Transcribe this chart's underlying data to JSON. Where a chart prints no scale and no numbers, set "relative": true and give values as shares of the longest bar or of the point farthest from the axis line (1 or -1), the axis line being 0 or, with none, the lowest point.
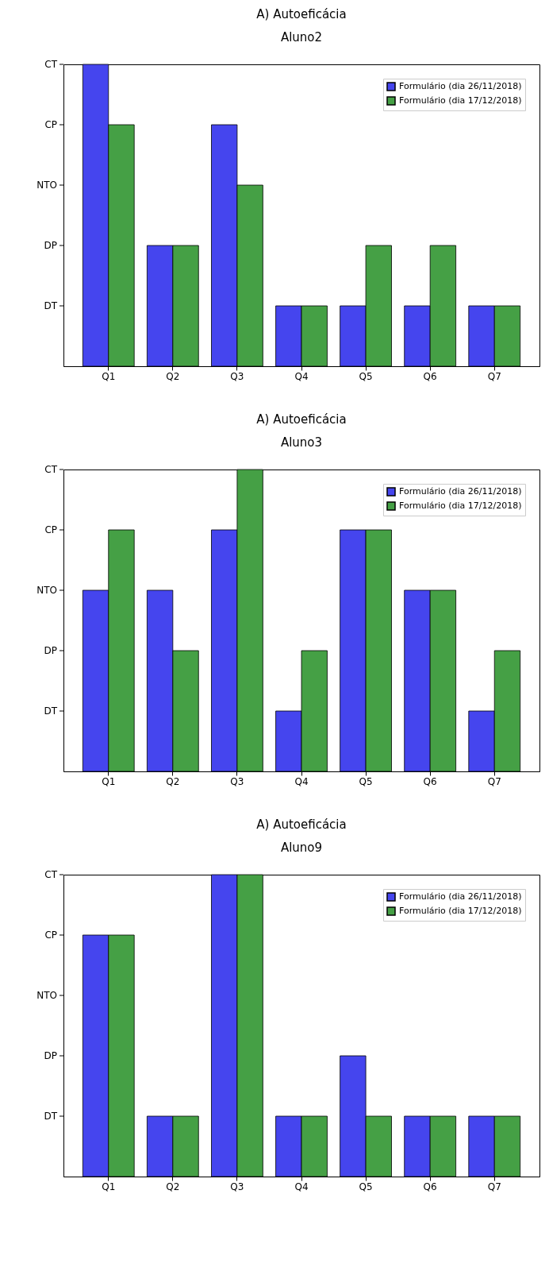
{
  "chart_data": [
    {
      "type": "bar",
      "title": "A) Autoeficácia",
      "subtitle": "Aluno2",
      "categories": [
        "Q1",
        "Q2",
        "Q3",
        "Q4",
        "Q5",
        "Q6",
        "Q7"
      ],
      "relative": true,
      "grid": false,
      "legend": "top right",
      "annotations": [
        "DT",
        "DP",
        "NTO",
        "CP",
        "CT"
      ],
      "series": [
        {
          "name": "Formulário (dia 26/11/2018)",
          "color": "#4545ee",
          "values": [
            1,
            0.4,
            0.8,
            0.2,
            0.2,
            0.2,
            0.2
          ]
        },
        {
          "name": "Formulário (dia 17/12/2018)",
          "color": "#45a045",
          "values": [
            0.8,
            0.4,
            0.6,
            0.2,
            0.4,
            0.4,
            0.2
          ]
        }
      ]
    },
    {
      "type": "bar",
      "title": "A) Autoeficácia",
      "subtitle": "Aluno3",
      "categories": [
        "Q1",
        "Q2",
        "Q3",
        "Q4",
        "Q5",
        "Q6",
        "Q7"
      ],
      "relative": true,
      "grid": false,
      "legend": "top right",
      "annotations": [
        "DT",
        "DP",
        "NTO",
        "CP",
        "CT"
      ],
      "series": [
        {
          "name": "Formulário (dia 26/11/2018)",
          "color": "#4545ee",
          "values": [
            0.6,
            0.6,
            0.8,
            0.2,
            0.8,
            0.6,
            0.2
          ]
        },
        {
          "name": "Formulário (dia 17/12/2018)",
          "color": "#45a045",
          "values": [
            0.8,
            0.4,
            1,
            0.4,
            0.8,
            0.6,
            0.4
          ]
        }
      ]
    },
    {
      "type": "bar",
      "title": "A) Autoeficácia",
      "subtitle": "Aluno9",
      "categories": [
        "Q1",
        "Q2",
        "Q3",
        "Q4",
        "Q5",
        "Q6",
        "Q7"
      ],
      "relative": true,
      "grid": false,
      "legend": "top right",
      "annotations": [
        "DT",
        "DP",
        "NTO",
        "CP",
        "CT"
      ],
      "series": [
        {
          "name": "Formulário (dia 26/11/2018)",
          "color": "#4545ee",
          "values": [
            0.8,
            0.2,
            1,
            0.2,
            0.4,
            0.2,
            0.2
          ]
        },
        {
          "name": "Formulário (dia 17/12/2018)",
          "color": "#45a045",
          "values": [
            0.8,
            0.2,
            1,
            0.2,
            0.2,
            0.2,
            0.2
          ]
        }
      ]
    }
  ]
}
